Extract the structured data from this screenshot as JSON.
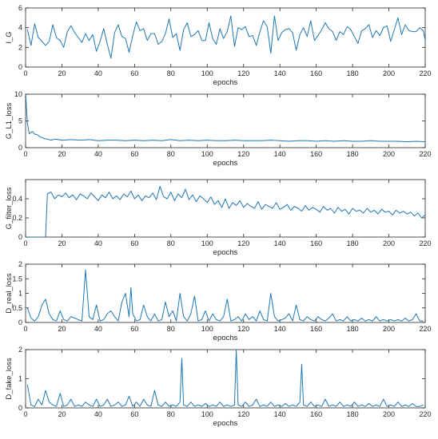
{
  "colors": {
    "series": "#1f77b4",
    "axes": "#262626",
    "background": "#ffffff"
  },
  "chart_data": [
    {
      "type": "line",
      "xlabel": "epochs",
      "ylabel": "I_G",
      "xlim": [
        0,
        220
      ],
      "ylim": [
        0,
        6
      ],
      "xticks": [
        0,
        20,
        40,
        60,
        80,
        100,
        120,
        140,
        160,
        180,
        200,
        220
      ],
      "yticks": [
        0,
        2,
        4,
        6
      ],
      "grid": false,
      "series": [
        {
          "x": [
            1,
            3,
            5,
            7,
            9,
            11,
            13,
            15,
            17,
            19,
            21,
            23,
            25,
            27,
            29,
            31,
            33,
            35,
            37,
            39,
            41,
            43,
            45,
            47,
            49,
            51,
            53,
            55,
            57,
            59,
            61,
            63,
            65,
            67,
            69,
            71,
            73,
            75,
            77,
            79,
            81,
            83,
            85,
            87,
            89,
            91,
            93,
            95,
            97,
            99,
            101,
            103,
            105,
            107,
            109,
            111,
            113,
            115,
            117,
            119,
            121,
            123,
            125,
            127,
            129,
            131,
            133,
            135,
            137,
            139,
            141,
            143,
            145,
            147,
            149,
            151,
            153,
            155,
            157,
            159,
            161,
            163,
            165,
            167,
            169,
            171,
            173,
            175,
            177,
            179,
            181,
            183,
            185,
            187,
            189,
            191,
            193,
            195,
            197,
            199,
            201,
            203,
            205,
            207,
            209,
            211,
            213,
            215,
            217,
            219,
            220
          ],
          "y": [
            3.8,
            2.2,
            4.4,
            3.0,
            2.6,
            2.2,
            2.6,
            4.3,
            3.0,
            2.7,
            2.0,
            3.6,
            4.2,
            3.5,
            3.0,
            2.5,
            3.4,
            2.7,
            3.3,
            1.6,
            2.6,
            3.9,
            2.3,
            0.9,
            3.5,
            4.3,
            3.1,
            2.9,
            1.5,
            3.2,
            4.6,
            3.7,
            3.9,
            2.7,
            3.4,
            3.4,
            2.3,
            2.6,
            3.4,
            4.9,
            3.0,
            3.4,
            1.7,
            3.8,
            4.5,
            3.1,
            3.3,
            3.7,
            2.7,
            2.7,
            4.5,
            2.9,
            2.3,
            3.9,
            2.9,
            3.6,
            5.2,
            2.1,
            4.0,
            3.8,
            4.1,
            3.1,
            3.2,
            2.2,
            3.6,
            4.7,
            4.1,
            1.4,
            5.2,
            2.7,
            3.5,
            3.8,
            3.9,
            3.5,
            1.7,
            3.3,
            4.0,
            3.1,
            4.7,
            2.7,
            3.2,
            3.8,
            4.5,
            3.9,
            3.6,
            2.7,
            3.6,
            3.3,
            4.1,
            3.8,
            3.1,
            2.4,
            3.7,
            3.9,
            4.3,
            3.0,
            3.7,
            3.2,
            4.0,
            4.2,
            2.6,
            3.8,
            5.0,
            3.3,
            4.3,
            3.7,
            3.6,
            3.6,
            4.0,
            3.7,
            2.7
          ]
        }
      ]
    },
    {
      "type": "line",
      "xlabel": "epochs",
      "ylabel": "G_L1_loss",
      "xlim": [
        0,
        220
      ],
      "ylim": [
        0,
        10
      ],
      "xticks": [
        0,
        20,
        40,
        60,
        80,
        100,
        120,
        140,
        160,
        180,
        200,
        220
      ],
      "yticks": [
        0,
        5,
        10
      ],
      "grid": false,
      "series": [
        {
          "x": [
            0,
            1,
            2,
            3,
            4,
            5,
            6,
            7,
            8,
            9,
            10,
            12,
            14,
            16,
            18,
            20,
            25,
            30,
            35,
            40,
            45,
            50,
            55,
            60,
            65,
            70,
            75,
            80,
            85,
            90,
            95,
            100,
            105,
            110,
            115,
            120,
            125,
            130,
            135,
            140,
            145,
            150,
            155,
            160,
            165,
            170,
            175,
            180,
            185,
            190,
            195,
            200,
            205,
            210,
            215,
            220
          ],
          "y": [
            10.2,
            4.5,
            2.6,
            2.9,
            3.0,
            2.5,
            2.5,
            2.3,
            2.0,
            1.9,
            1.7,
            1.6,
            1.4,
            1.6,
            1.5,
            1.4,
            1.5,
            1.4,
            1.5,
            1.3,
            1.4,
            1.4,
            1.3,
            1.4,
            1.3,
            1.4,
            1.3,
            1.5,
            1.3,
            1.4,
            1.3,
            1.4,
            1.3,
            1.3,
            1.4,
            1.3,
            1.3,
            1.3,
            1.4,
            1.3,
            1.2,
            1.3,
            1.3,
            1.2,
            1.3,
            1.2,
            1.3,
            1.2,
            1.2,
            1.3,
            1.2,
            1.2,
            1.2,
            1.1,
            1.2,
            1.1
          ]
        }
      ]
    },
    {
      "type": "line",
      "xlabel": "epochs",
      "ylabel": "G_filter_loss",
      "xlim": [
        0,
        220
      ],
      "ylim": [
        0,
        0.6
      ],
      "xticks": [
        0,
        20,
        40,
        60,
        80,
        100,
        120,
        140,
        160,
        180,
        200,
        220
      ],
      "yticks": [
        0,
        0.2,
        0.4
      ],
      "grid": false,
      "series": [
        {
          "x": [
            0,
            11,
            12,
            14,
            16,
            18,
            20,
            22,
            24,
            26,
            28,
            30,
            32,
            34,
            36,
            38,
            40,
            42,
            44,
            46,
            48,
            50,
            52,
            54,
            56,
            58,
            60,
            62,
            64,
            66,
            68,
            70,
            72,
            74,
            76,
            78,
            80,
            82,
            84,
            86,
            88,
            90,
            92,
            94,
            96,
            98,
            100,
            102,
            104,
            106,
            108,
            110,
            112,
            114,
            116,
            118,
            120,
            122,
            124,
            126,
            128,
            130,
            132,
            134,
            136,
            138,
            140,
            142,
            144,
            146,
            148,
            150,
            152,
            154,
            156,
            158,
            160,
            162,
            164,
            166,
            168,
            170,
            172,
            174,
            176,
            178,
            180,
            182,
            184,
            186,
            188,
            190,
            192,
            194,
            196,
            198,
            200,
            202,
            204,
            206,
            208,
            210,
            212,
            214,
            216,
            218,
            220
          ],
          "y": [
            0,
            0,
            0.45,
            0.47,
            0.4,
            0.44,
            0.42,
            0.46,
            0.41,
            0.44,
            0.39,
            0.45,
            0.43,
            0.4,
            0.46,
            0.42,
            0.38,
            0.44,
            0.41,
            0.47,
            0.4,
            0.43,
            0.39,
            0.45,
            0.42,
            0.48,
            0.4,
            0.44,
            0.38,
            0.43,
            0.41,
            0.46,
            0.39,
            0.53,
            0.42,
            0.4,
            0.47,
            0.38,
            0.45,
            0.41,
            0.5,
            0.39,
            0.44,
            0.37,
            0.43,
            0.4,
            0.36,
            0.42,
            0.34,
            0.38,
            0.31,
            0.4,
            0.3,
            0.36,
            0.33,
            0.38,
            0.31,
            0.35,
            0.32,
            0.3,
            0.37,
            0.29,
            0.34,
            0.32,
            0.3,
            0.36,
            0.29,
            0.31,
            0.34,
            0.28,
            0.32,
            0.3,
            0.27,
            0.33,
            0.28,
            0.31,
            0.29,
            0.26,
            0.32,
            0.28,
            0.3,
            0.25,
            0.31,
            0.27,
            0.29,
            0.24,
            0.3,
            0.27,
            0.28,
            0.25,
            0.3,
            0.26,
            0.28,
            0.24,
            0.29,
            0.26,
            0.27,
            0.23,
            0.28,
            0.25,
            0.27,
            0.24,
            0.26,
            0.22,
            0.25,
            0.2,
            0.23
          ]
        }
      ]
    },
    {
      "type": "line",
      "xlabel": "epochs",
      "ylabel": "D_real_loss",
      "xlim": [
        0,
        220
      ],
      "ylim": [
        0,
        2
      ],
      "xticks": [
        0,
        20,
        40,
        60,
        80,
        100,
        120,
        140,
        160,
        180,
        200,
        220
      ],
      "yticks": [
        0,
        0.5,
        1,
        1.5,
        2
      ],
      "grid": false,
      "series": [
        {
          "x": [
            1,
            3,
            5,
            7,
            9,
            11,
            13,
            15,
            17,
            19,
            21,
            23,
            25,
            27,
            29,
            31,
            33,
            35,
            37,
            39,
            41,
            43,
            45,
            47,
            49,
            51,
            53,
            55,
            57,
            58,
            59,
            61,
            63,
            65,
            67,
            69,
            71,
            73,
            75,
            77,
            79,
            81,
            83,
            85,
            87,
            89,
            91,
            93,
            95,
            97,
            99,
            101,
            103,
            105,
            107,
            109,
            111,
            113,
            115,
            117,
            119,
            121,
            123,
            125,
            127,
            129,
            131,
            133,
            135,
            137,
            139,
            141,
            143,
            145,
            147,
            149,
            151,
            153,
            155,
            157,
            159,
            161,
            163,
            165,
            167,
            169,
            171,
            173,
            175,
            177,
            179,
            181,
            183,
            185,
            187,
            189,
            191,
            193,
            195,
            197,
            199,
            201,
            203,
            205,
            207,
            209,
            211,
            213,
            215,
            217,
            219
          ],
          "y": [
            0.5,
            0.15,
            0.05,
            0.2,
            0.6,
            0.8,
            0.3,
            0.1,
            0.05,
            0.4,
            0.1,
            0.05,
            0.2,
            0.15,
            0.1,
            0.05,
            1.8,
            0.2,
            0.1,
            0.6,
            0.05,
            0.1,
            0.3,
            0.4,
            0.2,
            0.05,
            0.7,
            1.0,
            0.2,
            1.2,
            0.3,
            0.05,
            0.1,
            0.6,
            0.2,
            0.05,
            0.3,
            0.05,
            0.1,
            0.7,
            0.2,
            0.4,
            0.05,
            1.0,
            0.2,
            0.05,
            0.3,
            0.9,
            0.05,
            0.1,
            0.4,
            0.05,
            0.3,
            0.1,
            0.05,
            0.2,
            0.8,
            0.05,
            0.1,
            0.2,
            0.05,
            0.3,
            0.1,
            0.2,
            0.05,
            0.4,
            0.1,
            0.05,
            1.0,
            0.2,
            0.05,
            0.1,
            0.15,
            0.3,
            0.05,
            0.6,
            0.1,
            0.05,
            0.2,
            0.1,
            0.05,
            0.2,
            0.1,
            0.05,
            0.15,
            0.3,
            0.05,
            0.1,
            0.05,
            0.2,
            0.05,
            0.1,
            0.05,
            0.15,
            0.05,
            0.1,
            0.05,
            0.2,
            0.05,
            0.1,
            0.05,
            0.1,
            0.05,
            0.1,
            0.05,
            0.15,
            0.05,
            0.1,
            0.3,
            0.05,
            0.05
          ]
        }
      ]
    },
    {
      "type": "line",
      "xlabel": "epochs",
      "ylabel": "D_fake_loss",
      "xlim": [
        0,
        220
      ],
      "ylim": [
        0,
        2
      ],
      "xticks": [
        0,
        20,
        40,
        60,
        80,
        100,
        120,
        140,
        160,
        180,
        200,
        220
      ],
      "yticks": [
        0,
        1,
        2
      ],
      "grid": false,
      "series": [
        {
          "x": [
            1,
            3,
            5,
            7,
            9,
            11,
            13,
            15,
            17,
            19,
            21,
            23,
            25,
            27,
            29,
            31,
            33,
            35,
            37,
            39,
            41,
            43,
            45,
            47,
            49,
            51,
            53,
            55,
            57,
            59,
            61,
            63,
            65,
            67,
            69,
            71,
            73,
            75,
            77,
            79,
            81,
            83,
            85,
            86,
            87,
            89,
            91,
            93,
            95,
            97,
            99,
            101,
            103,
            105,
            107,
            109,
            111,
            113,
            115,
            116,
            117,
            119,
            121,
            123,
            125,
            127,
            129,
            131,
            133,
            135,
            137,
            139,
            141,
            143,
            145,
            147,
            149,
            151,
            152,
            153,
            155,
            157,
            159,
            161,
            163,
            165,
            167,
            169,
            171,
            173,
            175,
            177,
            179,
            181,
            183,
            185,
            187,
            189,
            191,
            193,
            195,
            197,
            199,
            201,
            203,
            205,
            207,
            209,
            211,
            213,
            215,
            217,
            219
          ],
          "y": [
            0.8,
            0.1,
            0.05,
            0.3,
            0.1,
            0.6,
            0.2,
            0.1,
            0.05,
            0.5,
            0.05,
            0.1,
            0.3,
            0.05,
            0.1,
            0.05,
            0.2,
            0.1,
            0.05,
            0.3,
            0.05,
            0.1,
            0.3,
            0.05,
            0.1,
            0.2,
            0.05,
            0.1,
            0.4,
            0.05,
            0.2,
            0.05,
            0.3,
            0.1,
            0.05,
            0.6,
            0.1,
            0.05,
            0.2,
            0.05,
            0.1,
            0.05,
            0.2,
            1.7,
            0.1,
            0.05,
            0.2,
            0.05,
            0.1,
            0.05,
            0.15,
            0.05,
            0.1,
            0.05,
            0.2,
            0.05,
            0.1,
            0.05,
            0.1,
            2.0,
            0.1,
            0.05,
            0.2,
            0.05,
            0.1,
            0.3,
            0.05,
            0.1,
            0.05,
            0.2,
            0.05,
            0.1,
            0.05,
            0.15,
            0.05,
            0.1,
            0.05,
            0.2,
            1.5,
            0.1,
            0.05,
            0.2,
            0.05,
            0.1,
            0.05,
            0.3,
            0.05,
            0.1,
            0.05,
            0.2,
            0.05,
            0.1,
            0.05,
            0.2,
            0.05,
            0.1,
            0.05,
            0.15,
            0.05,
            0.1,
            0.05,
            0.3,
            0.05,
            0.1,
            0.05,
            0.2,
            0.05,
            0.1,
            0.05,
            0.15,
            0.05,
            0.05,
            0.1
          ]
        }
      ]
    }
  ]
}
